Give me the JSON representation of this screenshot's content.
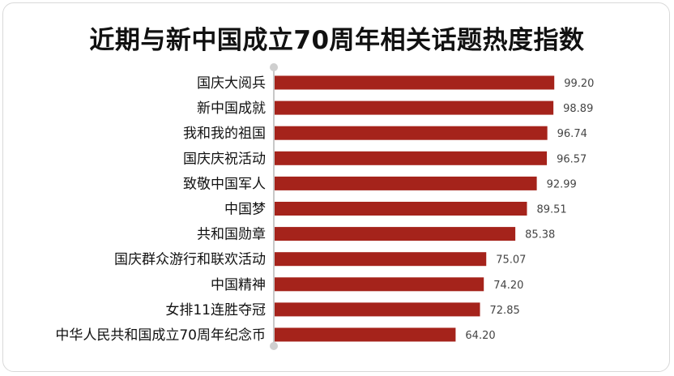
{
  "title": "近期与新中国成立70周年相关话题热度指数",
  "colors": {
    "bar": "#A5231B",
    "axis": "#c8c8c8",
    "axis_dot": "#cfcfcf",
    "label": "#111111",
    "value": "#444444"
  },
  "chart_data": {
    "type": "bar",
    "orientation": "horizontal",
    "title": "近期与新中国成立70周年相关话题热度指数",
    "categories": [
      "国庆大阅兵",
      "新中国成就",
      "我和我的祖国",
      "国庆庆祝活动",
      "致敬中国军人",
      "中国梦",
      "共和国勋章",
      "国庆群众游行和联欢活动",
      "中国精神",
      "女排11连胜夺冠",
      "中华人民共和国成立70周年纪念币"
    ],
    "values": [
      99.2,
      98.89,
      96.74,
      96.57,
      92.99,
      89.51,
      85.38,
      75.07,
      74.2,
      72.85,
      64.2
    ],
    "value_labels": [
      "99.20",
      "98.89",
      "96.74",
      "96.57",
      "92.99",
      "89.51",
      "85.38",
      "75.07",
      "74.20",
      "72.85",
      "64.20"
    ],
    "xlim": [
      0,
      100
    ],
    "grid": false,
    "legend": "none"
  }
}
